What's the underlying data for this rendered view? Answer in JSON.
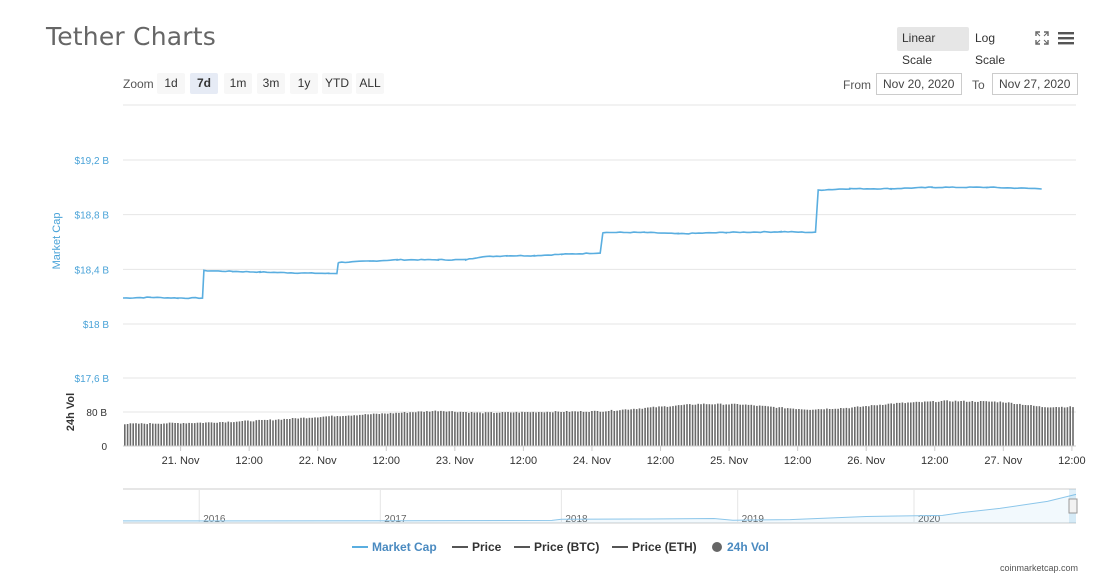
{
  "header": {
    "title": "Tether Charts",
    "linear_scale": "Linear Scale",
    "log_scale": "Log Scale"
  },
  "toolbar": {
    "zoom_label": "Zoom",
    "zoom_options": [
      "1d",
      "7d",
      "1m",
      "3m",
      "1y",
      "YTD",
      "ALL"
    ],
    "zoom_active": "7d",
    "from_label": "From",
    "from_value": "Nov 20, 2020",
    "to_label": "To",
    "to_value": "Nov 27, 2020"
  },
  "colors": {
    "market_cap": "#5aaee0",
    "volume": "#555555",
    "grid": "#e6e6e6",
    "axis_text_blue": "#4aa3d8"
  },
  "chart_data": {
    "type": "line",
    "market_cap": {
      "name": "Market Cap",
      "ylabel": "Market Cap",
      "yticks": [
        "$18 B",
        "$18,4 B",
        "$18,8 B",
        "$19,2 B"
      ],
      "ytick_values": [
        18.0,
        18.4,
        18.8,
        19.2
      ],
      "unit": "B USD",
      "points": [
        [
          0,
          18.19
        ],
        [
          0.2,
          18.195
        ],
        [
          0.4,
          18.19
        ],
        [
          0.58,
          18.19
        ],
        [
          0.59,
          18.39
        ],
        [
          0.8,
          18.385
        ],
        [
          1.0,
          18.38
        ],
        [
          1.2,
          18.375
        ],
        [
          1.5,
          18.37
        ],
        [
          1.56,
          18.37
        ],
        [
          1.57,
          18.45
        ],
        [
          1.8,
          18.46
        ],
        [
          2.0,
          18.47
        ],
        [
          2.3,
          18.47
        ],
        [
          2.5,
          18.47
        ],
        [
          2.6,
          18.49
        ],
        [
          2.8,
          18.5
        ],
        [
          3.0,
          18.5
        ],
        [
          3.2,
          18.51
        ],
        [
          3.48,
          18.52
        ],
        [
          3.5,
          18.67
        ],
        [
          3.8,
          18.67
        ],
        [
          4.05,
          18.66
        ],
        [
          4.4,
          18.67
        ],
        [
          4.8,
          18.675
        ],
        [
          5.05,
          18.67
        ],
        [
          5.07,
          18.98
        ],
        [
          5.3,
          18.99
        ],
        [
          5.6,
          18.99
        ],
        [
          5.9,
          19.0
        ],
        [
          6.3,
          19.0
        ],
        [
          6.7,
          18.99
        ]
      ]
    },
    "volume": {
      "name": "24h Vol",
      "ylabel": "24h Vol",
      "yticks": [
        "0",
        "80 B"
      ],
      "ytick_values": [
        0,
        80
      ],
      "profile": [
        [
          0,
          52
        ],
        [
          0.6,
          55
        ],
        [
          1.0,
          60
        ],
        [
          1.5,
          70
        ],
        [
          2.0,
          78
        ],
        [
          2.3,
          83
        ],
        [
          2.6,
          78
        ],
        [
          3.0,
          80
        ],
        [
          3.5,
          82
        ],
        [
          3.9,
          92
        ],
        [
          4.2,
          99
        ],
        [
          4.5,
          98
        ],
        [
          4.8,
          90
        ],
        [
          5.0,
          86
        ],
        [
          5.3,
          90
        ],
        [
          5.6,
          100
        ],
        [
          6.0,
          106
        ],
        [
          6.4,
          104
        ],
        [
          6.7,
          92
        ]
      ]
    },
    "x_ticks": [
      "21. Nov",
      "12:00",
      "22. Nov",
      "12:00",
      "23. Nov",
      "12:00",
      "24. Nov",
      "12:00",
      "25. Nov",
      "12:00",
      "26. Nov",
      "12:00",
      "27. Nov",
      "12:00"
    ],
    "x_tick_days": [
      0.42,
      0.92,
      1.42,
      1.92,
      2.42,
      2.92,
      3.42,
      3.92,
      4.42,
      4.92,
      5.42,
      5.92,
      6.42,
      6.92
    ],
    "x_range_days": [
      0,
      6.95
    ],
    "navigator": {
      "years": [
        "2016",
        "2017",
        "2018",
        "2019",
        "2020"
      ],
      "year_positions": [
        0.08,
        0.27,
        0.46,
        0.645,
        0.83
      ],
      "trend": [
        [
          0,
          0.005
        ],
        [
          0.3,
          0.007
        ],
        [
          0.45,
          0.02
        ],
        [
          0.46,
          0.06
        ],
        [
          0.55,
          0.07
        ],
        [
          0.62,
          0.09
        ],
        [
          0.64,
          0.03
        ],
        [
          0.7,
          0.05
        ],
        [
          0.78,
          0.16
        ],
        [
          0.86,
          0.2
        ],
        [
          0.88,
          0.3
        ],
        [
          0.92,
          0.45
        ],
        [
          0.97,
          0.7
        ],
        [
          1.0,
          0.95
        ]
      ]
    },
    "legend": [
      {
        "name": "Market Cap",
        "color": "#5aaee0",
        "style": "line"
      },
      {
        "name": "Price",
        "color": "#555555",
        "style": "line"
      },
      {
        "name": "Price (BTC)",
        "color": "#555555",
        "style": "line"
      },
      {
        "name": "Price (ETH)",
        "color": "#555555",
        "style": "line"
      },
      {
        "name": "24h Vol",
        "color": "#666666",
        "style": "circle"
      }
    ]
  },
  "credit": "coinmarketcap.com"
}
